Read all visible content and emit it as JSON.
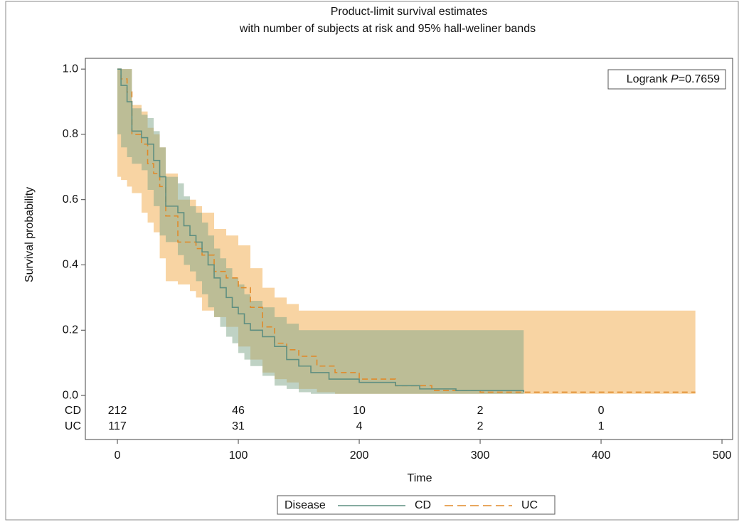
{
  "chart_data": {
    "type": "survival",
    "title": "Product-limit survival estimates",
    "subtitle": "with number of subjects at risk and 95% hall-weliner bands",
    "x_label": "Time",
    "y_label": "Survival probability",
    "xlim": [
      -26.5,
      508.8
    ],
    "ylim": [
      -0.135,
      1.033
    ],
    "xticks": [
      0,
      100,
      200,
      300,
      400,
      500
    ],
    "yticks": [
      {
        "value": 0,
        "label": "0.0"
      },
      0.2,
      0.4,
      0.6,
      0.8,
      {
        "value": 1,
        "label": "1.0"
      }
    ],
    "annotation": {
      "prefix": "Logrank ",
      "italic": "P",
      "suffix": "=0.7659"
    },
    "legend_title": "Disease",
    "series": [
      {
        "name": "UC",
        "color": "#e08a2a",
        "band_color": "#f3b865",
        "dash": true,
        "x": [
          0,
          3,
          8,
          12,
          20,
          25,
          30,
          35,
          40,
          50,
          60,
          65,
          70,
          80,
          90,
          100,
          110,
          120,
          130,
          140,
          150,
          165,
          180,
          200,
          230,
          260,
          300,
          478
        ],
        "values": [
          1.0,
          0.97,
          0.93,
          0.8,
          0.77,
          0.71,
          0.68,
          0.64,
          0.55,
          0.47,
          0.47,
          0.45,
          0.43,
          0.38,
          0.36,
          0.33,
          0.27,
          0.21,
          0.16,
          0.14,
          0.12,
          0.09,
          0.07,
          0.05,
          0.03,
          0.015,
          0.01,
          0.01
        ],
        "upper": [
          1.0,
          1.0,
          1.0,
          0.89,
          0.87,
          0.82,
          0.8,
          0.76,
          0.68,
          0.6,
          0.6,
          0.58,
          0.56,
          0.51,
          0.49,
          0.46,
          0.39,
          0.33,
          0.3,
          0.28,
          0.26,
          0.26,
          0.26,
          0.26,
          0.26,
          0.26,
          0.26,
          0.26
        ],
        "lower": [
          0.66,
          0.67,
          0.66,
          0.64,
          0.62,
          0.56,
          0.53,
          0.5,
          0.42,
          0.35,
          0.34,
          0.32,
          0.3,
          0.26,
          0.24,
          0.21,
          0.15,
          0.11,
          0.07,
          0.05,
          0.04,
          0.02,
          0.01,
          0.005,
          0.005,
          0.005,
          0.005,
          0.005
        ]
      },
      {
        "name": "CD",
        "color": "#5f8f80",
        "band_color": "#7fa58a",
        "dash": false,
        "x": [
          0,
          3,
          8,
          12,
          20,
          25,
          30,
          35,
          40,
          50,
          55,
          60,
          65,
          70,
          75,
          80,
          85,
          90,
          95,
          100,
          105,
          110,
          120,
          130,
          140,
          150,
          160,
          175,
          200,
          230,
          250,
          280,
          336
        ],
        "values": [
          1.0,
          0.95,
          0.9,
          0.81,
          0.79,
          0.77,
          0.72,
          0.67,
          0.58,
          0.56,
          0.52,
          0.49,
          0.47,
          0.44,
          0.4,
          0.36,
          0.33,
          0.3,
          0.27,
          0.25,
          0.22,
          0.2,
          0.18,
          0.15,
          0.11,
          0.09,
          0.07,
          0.05,
          0.04,
          0.03,
          0.02,
          0.015,
          0.01
        ],
        "upper": [
          1.0,
          1.0,
          1.0,
          0.88,
          0.86,
          0.85,
          0.81,
          0.76,
          0.67,
          0.65,
          0.61,
          0.58,
          0.56,
          0.53,
          0.49,
          0.45,
          0.42,
          0.39,
          0.36,
          0.34,
          0.31,
          0.29,
          0.27,
          0.24,
          0.22,
          0.2,
          0.2,
          0.2,
          0.2,
          0.2,
          0.2,
          0.2,
          0.2
        ],
        "lower": [
          0.75,
          0.8,
          0.76,
          0.73,
          0.71,
          0.69,
          0.63,
          0.58,
          0.49,
          0.47,
          0.43,
          0.4,
          0.38,
          0.35,
          0.31,
          0.27,
          0.24,
          0.21,
          0.18,
          0.16,
          0.13,
          0.11,
          0.09,
          0.06,
          0.03,
          0.02,
          0.01,
          0.005,
          0.005,
          0.005,
          0.005,
          0.005,
          0.005
        ]
      }
    ],
    "legend_order": [
      1,
      0
    ],
    "risk_table": {
      "times": [
        0,
        100,
        200,
        300,
        400
      ],
      "rows": [
        {
          "label": "CD",
          "values": [
            212,
            46,
            10,
            2,
            0
          ]
        },
        {
          "label": "UC",
          "values": [
            117,
            31,
            4,
            2,
            1
          ]
        }
      ]
    }
  }
}
